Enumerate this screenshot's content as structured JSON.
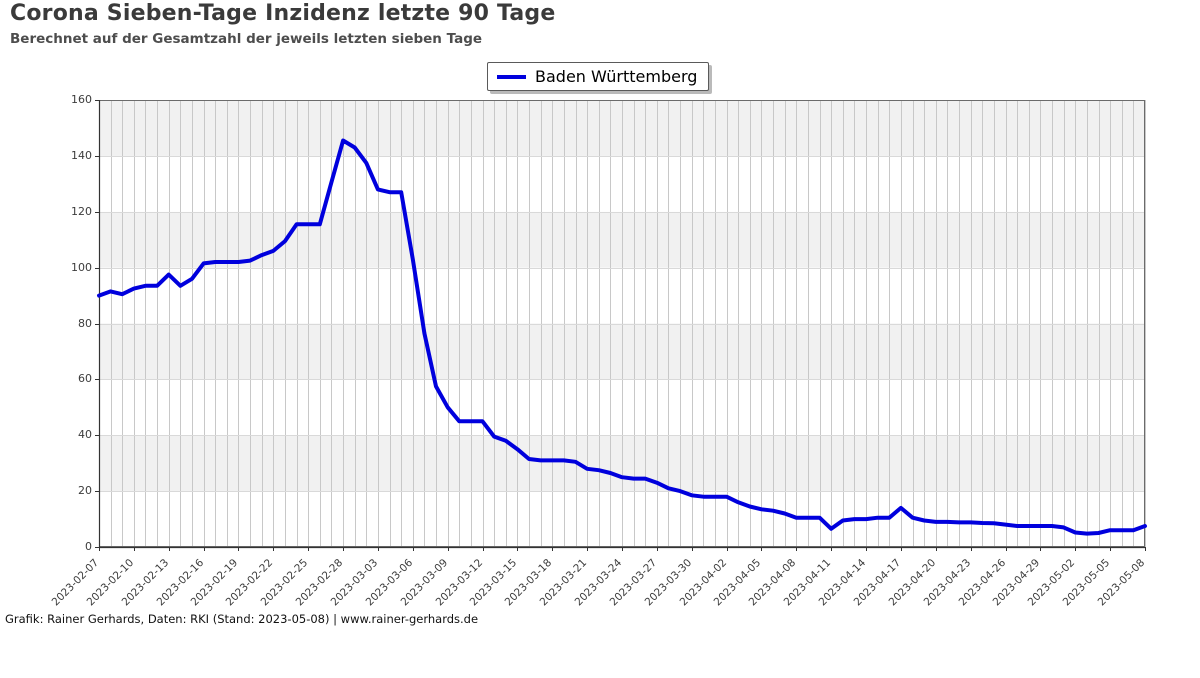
{
  "header": {
    "title": "Corona Sieben-Tage Inzidenz letzte 90 Tage",
    "subtitle": "Berechnet auf der Gesamtzahl der jeweils letzten sieben Tage"
  },
  "legend": {
    "label": "Baden Württemberg",
    "line_color": "#0000dd",
    "position": "top-center"
  },
  "footer": {
    "credit": "Grafik: Rainer Gerhards, Daten: RKI (Stand: 2023-05-08) | www.rainer-gerhards.de"
  },
  "chart_data": {
    "type": "line",
    "title": "Corona Sieben-Tage Inzidenz letzte 90 Tage",
    "subtitle": "Berechnet auf der Gesamtzahl der jeweils letzten sieben Tage",
    "xlabel": "",
    "ylabel": "",
    "x_start_date": "2023-02-07",
    "x_end_date": "2023-05-08",
    "x_tick_interval_days": 3,
    "x_tick_labels": [
      "2023-02-07",
      "2023-02-10",
      "2023-02-13",
      "2023-02-16",
      "2023-02-19",
      "2023-02-22",
      "2023-02-25",
      "2023-02-28",
      "2023-03-03",
      "2023-03-06",
      "2023-03-09",
      "2023-03-12",
      "2023-03-15",
      "2023-03-18",
      "2023-03-21",
      "2023-03-24",
      "2023-03-27",
      "2023-03-30",
      "2023-04-02",
      "2023-04-05",
      "2023-04-08",
      "2023-04-11",
      "2023-04-14",
      "2023-04-17",
      "2023-04-20",
      "2023-04-23",
      "2023-04-26",
      "2023-04-29",
      "2023-05-02",
      "2023-05-05",
      "2023-05-08"
    ],
    "y_ticks": [
      0,
      20,
      40,
      60,
      80,
      100,
      120,
      140,
      160
    ],
    "ylim": [
      0,
      160
    ],
    "grid": "vertical line per day; alternating horizontal bands every 20 units",
    "band_fill_odd": "#f1f1f1",
    "band_fill_even": "#ffffff",
    "legend_position": "top-center",
    "series": [
      {
        "name": "Baden Württemberg",
        "color": "#0000dd",
        "values": [
          90,
          91.5,
          90.5,
          92.5,
          93.5,
          93.5,
          97.5,
          93.5,
          96,
          101.5,
          102,
          102,
          102,
          102.5,
          104.5,
          106,
          109.5,
          115.5,
          115.5,
          115.5,
          130.5,
          145.5,
          143,
          137.5,
          128,
          127,
          127,
          103,
          76.5,
          57.5,
          50,
          45,
          45,
          45,
          39.5,
          38,
          35,
          31.5,
          31,
          31,
          31,
          30.5,
          28,
          27.5,
          26.5,
          25,
          24.5,
          24.5,
          23,
          21,
          20,
          18.5,
          18,
          18,
          18,
          16,
          14.5,
          13.5,
          13,
          12,
          10.5,
          10.5,
          10.5,
          6.5,
          9.5,
          10,
          10,
          10.5,
          10.5,
          14,
          10.5,
          9.5,
          9,
          9,
          8.8,
          8.8,
          8.6,
          8.5,
          8,
          7.5,
          7.5,
          7.5,
          7.5,
          7,
          5.2,
          4.8,
          5,
          6,
          6,
          6,
          7.5
        ]
      }
    ]
  }
}
